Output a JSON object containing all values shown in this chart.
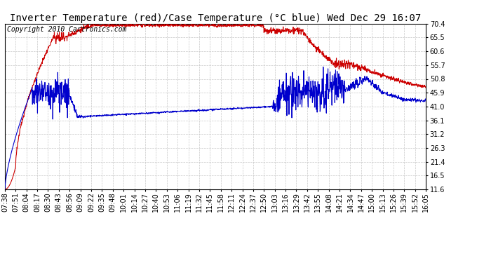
{
  "title": "Inverter Temperature (red)/Case Temperature (°C blue) Wed Dec 29 16:07",
  "copyright": "Copyright 2010 Cartronics.com",
  "yticks": [
    11.6,
    16.5,
    21.4,
    26.3,
    31.2,
    36.1,
    41.0,
    45.9,
    50.8,
    55.7,
    60.6,
    65.5,
    70.4
  ],
  "xtick_labels": [
    "07:38",
    "07:51",
    "08:04",
    "08:17",
    "08:30",
    "08:43",
    "08:56",
    "09:09",
    "09:22",
    "09:35",
    "09:48",
    "10:01",
    "10:14",
    "10:27",
    "10:40",
    "10:53",
    "11:06",
    "11:19",
    "11:32",
    "11:45",
    "11:58",
    "12:11",
    "12:24",
    "12:37",
    "12:50",
    "13:03",
    "13:16",
    "13:29",
    "13:42",
    "13:55",
    "14:08",
    "14:21",
    "14:34",
    "14:47",
    "15:00",
    "15:13",
    "15:26",
    "15:39",
    "15:52",
    "16:05"
  ],
  "ymin": 11.6,
  "ymax": 70.4,
  "background_color": "#ffffff",
  "grid_color": "#c8c8c8",
  "red_color": "#cc0000",
  "blue_color": "#0000cc",
  "title_fontsize": 10,
  "copyright_fontsize": 7,
  "tick_fontsize": 7
}
